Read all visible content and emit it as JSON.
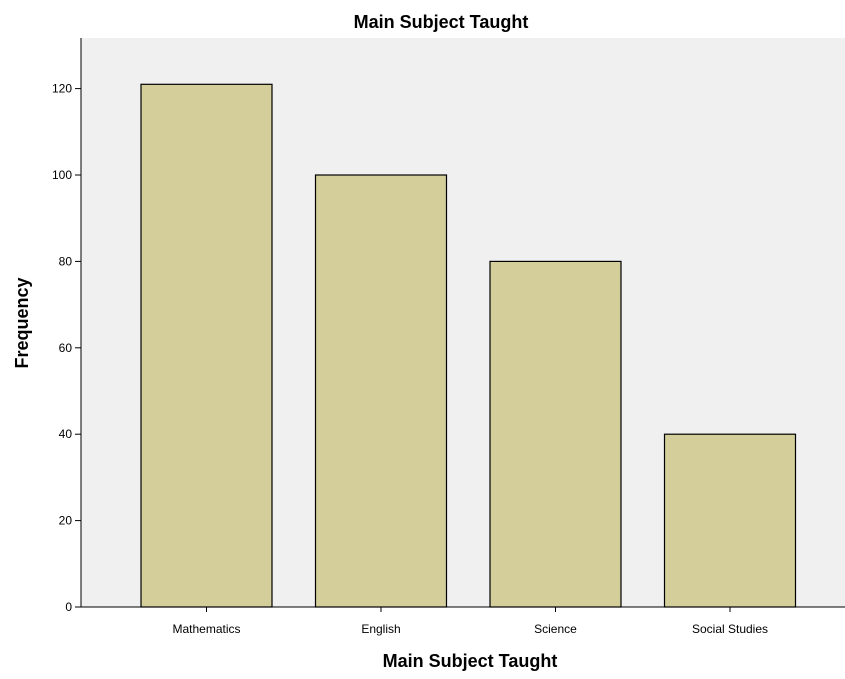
{
  "chart_data": {
    "type": "bar",
    "title": "Main Subject Taught",
    "xlabel": "Main Subject Taught",
    "ylabel": "Frequency",
    "categories": [
      "Mathematics",
      "English",
      "Science",
      "Social Studies"
    ],
    "values": [
      121,
      100,
      80,
      40
    ],
    "yticks": [
      0,
      20,
      40,
      60,
      80,
      100,
      120
    ],
    "ylim": [
      0,
      132
    ],
    "grid": false,
    "legend": "none",
    "colors": {
      "bar_fill": "#d3ce9a",
      "bar_stroke": "#000000",
      "plot_background": "#f0f0f0",
      "axis": "#000000"
    }
  }
}
